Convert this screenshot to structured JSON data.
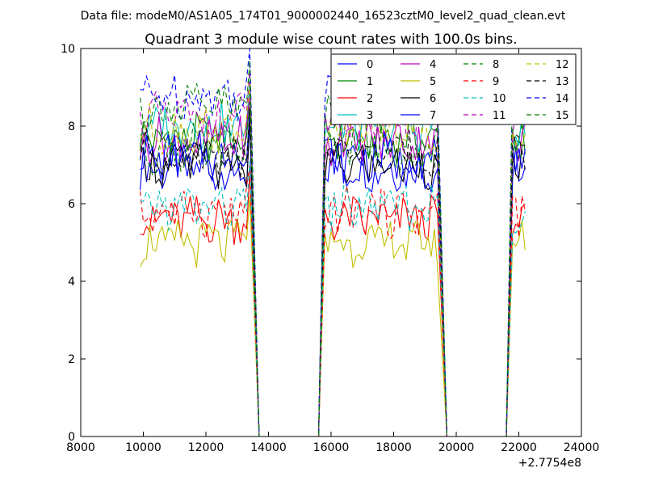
{
  "figure": {
    "suptitle": "Data file: modeM0/AS1A05_174T01_9000002440_16523cztM0_level2_quad_clean.evt",
    "background": "#ffffff"
  },
  "chart_data": {
    "type": "line",
    "title": "Quadrant 3 module wise count rates with 100.0s bins.",
    "xlabel": "",
    "ylabel": "",
    "xlim": [
      8000,
      24000
    ],
    "ylim": [
      0,
      10
    ],
    "x_offset_label": "+2.7754e8",
    "grid": false,
    "legend": {
      "placement": "top-right",
      "columns": 4
    },
    "x_ticks": [
      8000,
      10000,
      12000,
      14000,
      16000,
      18000,
      20000,
      22000,
      24000
    ],
    "x_tick_labels": [
      "8000",
      "10000",
      "12000",
      "14000",
      "16000",
      "18000",
      "20000",
      "22000",
      "24000"
    ],
    "y_ticks": [
      0,
      2,
      4,
      6,
      8,
      10
    ],
    "y_tick_labels": [
      "0",
      "2",
      "4",
      "6",
      "8",
      "10"
    ],
    "segments": [
      {
        "start": 9900,
        "end": 13400,
        "count": 36,
        "drop_to": 13700
      },
      {
        "start": 15800,
        "end": 19400,
        "count": 37,
        "rise_from": 15600,
        "drop_to": 19700
      },
      {
        "start": 21800,
        "end": 22200,
        "count": 5,
        "rise_from": 21600
      }
    ],
    "series": [
      {
        "name": "0",
        "color": "#0000ff",
        "dash": "solid",
        "level": 6.9
      },
      {
        "name": "1",
        "color": "#008000",
        "dash": "solid",
        "level": 7.7
      },
      {
        "name": "2",
        "color": "#ff0000",
        "dash": "solid",
        "level": 5.6
      },
      {
        "name": "3",
        "color": "#00bfbf",
        "dash": "solid",
        "level": 8.0
      },
      {
        "name": "4",
        "color": "#bf00bf",
        "dash": "solid",
        "level": 7.6
      },
      {
        "name": "5",
        "color": "#bfbf00",
        "dash": "solid",
        "level": 5.0
      },
      {
        "name": "6",
        "color": "#000000",
        "dash": "solid",
        "level": 7.0
      },
      {
        "name": "7",
        "color": "#0000ff",
        "dash": "solid",
        "level": 7.2
      },
      {
        "name": "8",
        "color": "#008000",
        "dash": "dashed",
        "level": 7.4
      },
      {
        "name": "9",
        "color": "#ff0000",
        "dash": "dashed",
        "level": 5.8
      },
      {
        "name": "10",
        "color": "#00bfbf",
        "dash": "dashed",
        "level": 5.9
      },
      {
        "name": "11",
        "color": "#bf00bf",
        "dash": "dashed",
        "level": 8.2
      },
      {
        "name": "12",
        "color": "#bfbf00",
        "dash": "dashed",
        "level": 7.9
      },
      {
        "name": "13",
        "color": "#000000",
        "dash": "dashed",
        "level": 7.3
      },
      {
        "name": "14",
        "color": "#0000ff",
        "dash": "dashed",
        "level": 8.8
      },
      {
        "name": "15",
        "color": "#008000",
        "dash": "dashed",
        "level": 8.5
      }
    ]
  }
}
